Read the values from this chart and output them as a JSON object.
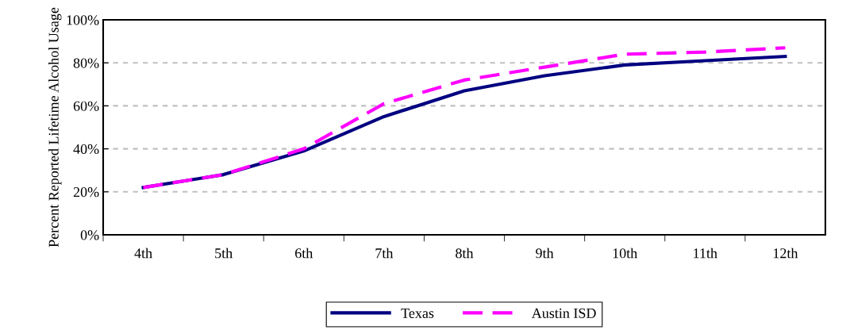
{
  "chart_data": {
    "type": "line",
    "ylabel": "Percent Reported Lifetime Alcohol Usage",
    "categories": [
      "4th",
      "5th",
      "6th",
      "7th",
      "8th",
      "9th",
      "10th",
      "11th",
      "12th"
    ],
    "series": [
      {
        "name": "Texas",
        "color": "#000080",
        "line_style": "solid",
        "values": [
          22,
          28,
          39,
          55,
          67,
          74,
          79,
          81,
          83
        ]
      },
      {
        "name": "Austin ISD",
        "color": "#ff00ff",
        "line_style": "dashed",
        "values": [
          22,
          28,
          40,
          61,
          72,
          78,
          84,
          85,
          87
        ]
      }
    ],
    "ylim": [
      0,
      100
    ],
    "yticks": [
      {
        "value": 0,
        "label": "0%"
      },
      {
        "value": 20,
        "label": "20%"
      },
      {
        "value": 40,
        "label": "40%"
      },
      {
        "value": 60,
        "label": "60%"
      },
      {
        "value": 80,
        "label": "80%"
      },
      {
        "value": 100,
        "label": "100%"
      }
    ],
    "grid": "y",
    "legend": "bottom",
    "marker": "none"
  }
}
